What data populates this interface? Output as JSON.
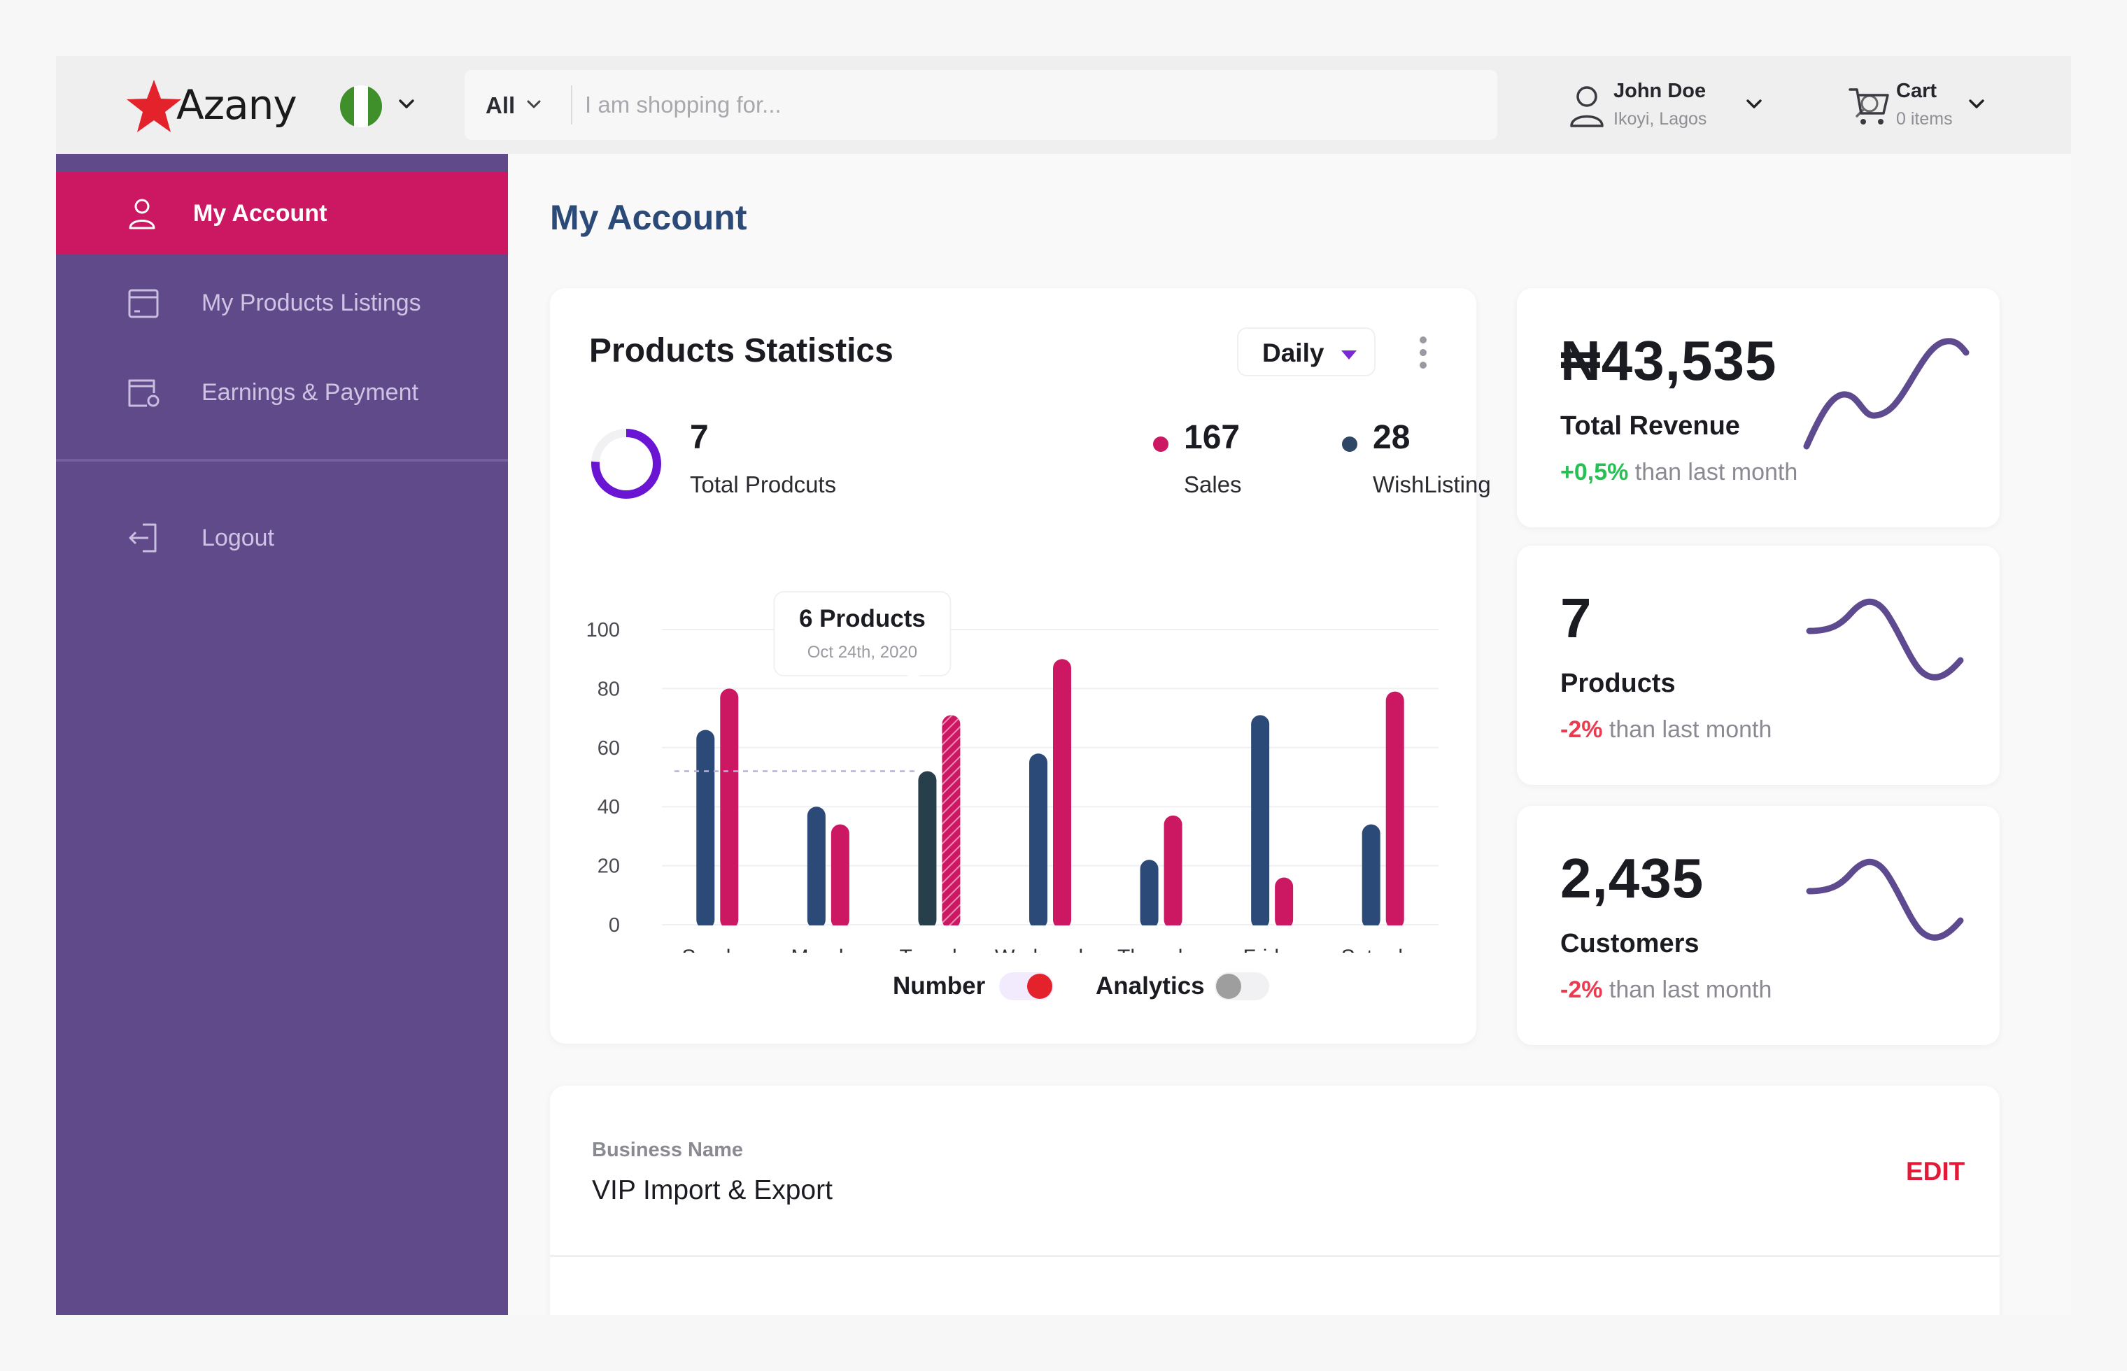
{
  "header": {
    "logo_text": "Azany",
    "search": {
      "category": "All",
      "placeholder": "I am shopping for..."
    },
    "user": {
      "name": "John Doe",
      "location": "Ikoyi, Lagos"
    },
    "cart": {
      "label": "Cart",
      "items": "0 items"
    }
  },
  "sidebar": {
    "items": [
      {
        "label": "My Account",
        "icon": "user-icon",
        "active": true
      },
      {
        "label": "My Products Listings",
        "icon": "listings-icon",
        "active": false
      },
      {
        "label": "Earnings & Payment",
        "icon": "wallet-icon",
        "active": false
      },
      {
        "label": "Logout",
        "icon": "logout-icon",
        "active": false
      }
    ]
  },
  "main": {
    "page_title": "My Account",
    "stats": {
      "title": "Products Statistics",
      "period": "Daily",
      "total_products": {
        "value": "7",
        "label": "Total Prodcuts"
      },
      "sales": {
        "value": "167",
        "label": "Sales"
      },
      "wishlisting": {
        "value": "28",
        "label": "WishListing"
      },
      "tooltip": {
        "title": "6 Products",
        "date": "Oct 24th, 2020"
      },
      "toggles": [
        {
          "label": "Number",
          "on": true
        },
        {
          "label": "Analytics",
          "on": false
        }
      ]
    },
    "kpis": [
      {
        "value": "₦43,535",
        "label": "Total Revenue",
        "change": "+0,5%",
        "suffix": " than last month",
        "direction": "up"
      },
      {
        "value": "7",
        "label": "Products",
        "change": "-2%",
        "suffix": " than last month",
        "direction": "down"
      },
      {
        "value": "2,435",
        "label": "Customers",
        "change": "-2%",
        "suffix": " than last month",
        "direction": "down"
      }
    ],
    "business": {
      "label": "Business Name",
      "value": "VIP Import & Export",
      "edit_label": "EDIT"
    }
  },
  "colors": {
    "accent_pink": "#cc1763",
    "sidebar_purple": "#604a8a",
    "navy": "#2c4a78",
    "spark": "#5e4a8e",
    "up": "#25c152",
    "down": "#ea3b50"
  },
  "chart_data": {
    "type": "bar",
    "categories": [
      "Sunday",
      "Monday",
      "Tuesday",
      "Wednesday",
      "Thursday",
      "Friday",
      "Saturday"
    ],
    "series": [
      {
        "color": "#2c4a78",
        "values": [
          66,
          40,
          52,
          58,
          22,
          71,
          34
        ]
      },
      {
        "color": "#cc1763",
        "values": [
          80,
          34,
          71,
          90,
          37,
          16,
          79
        ]
      }
    ],
    "yticks": [
      0,
      20,
      40,
      60,
      80,
      100
    ],
    "ylim": [
      0,
      100
    ],
    "highlight_index": 2,
    "grid": true,
    "legend": "none"
  }
}
